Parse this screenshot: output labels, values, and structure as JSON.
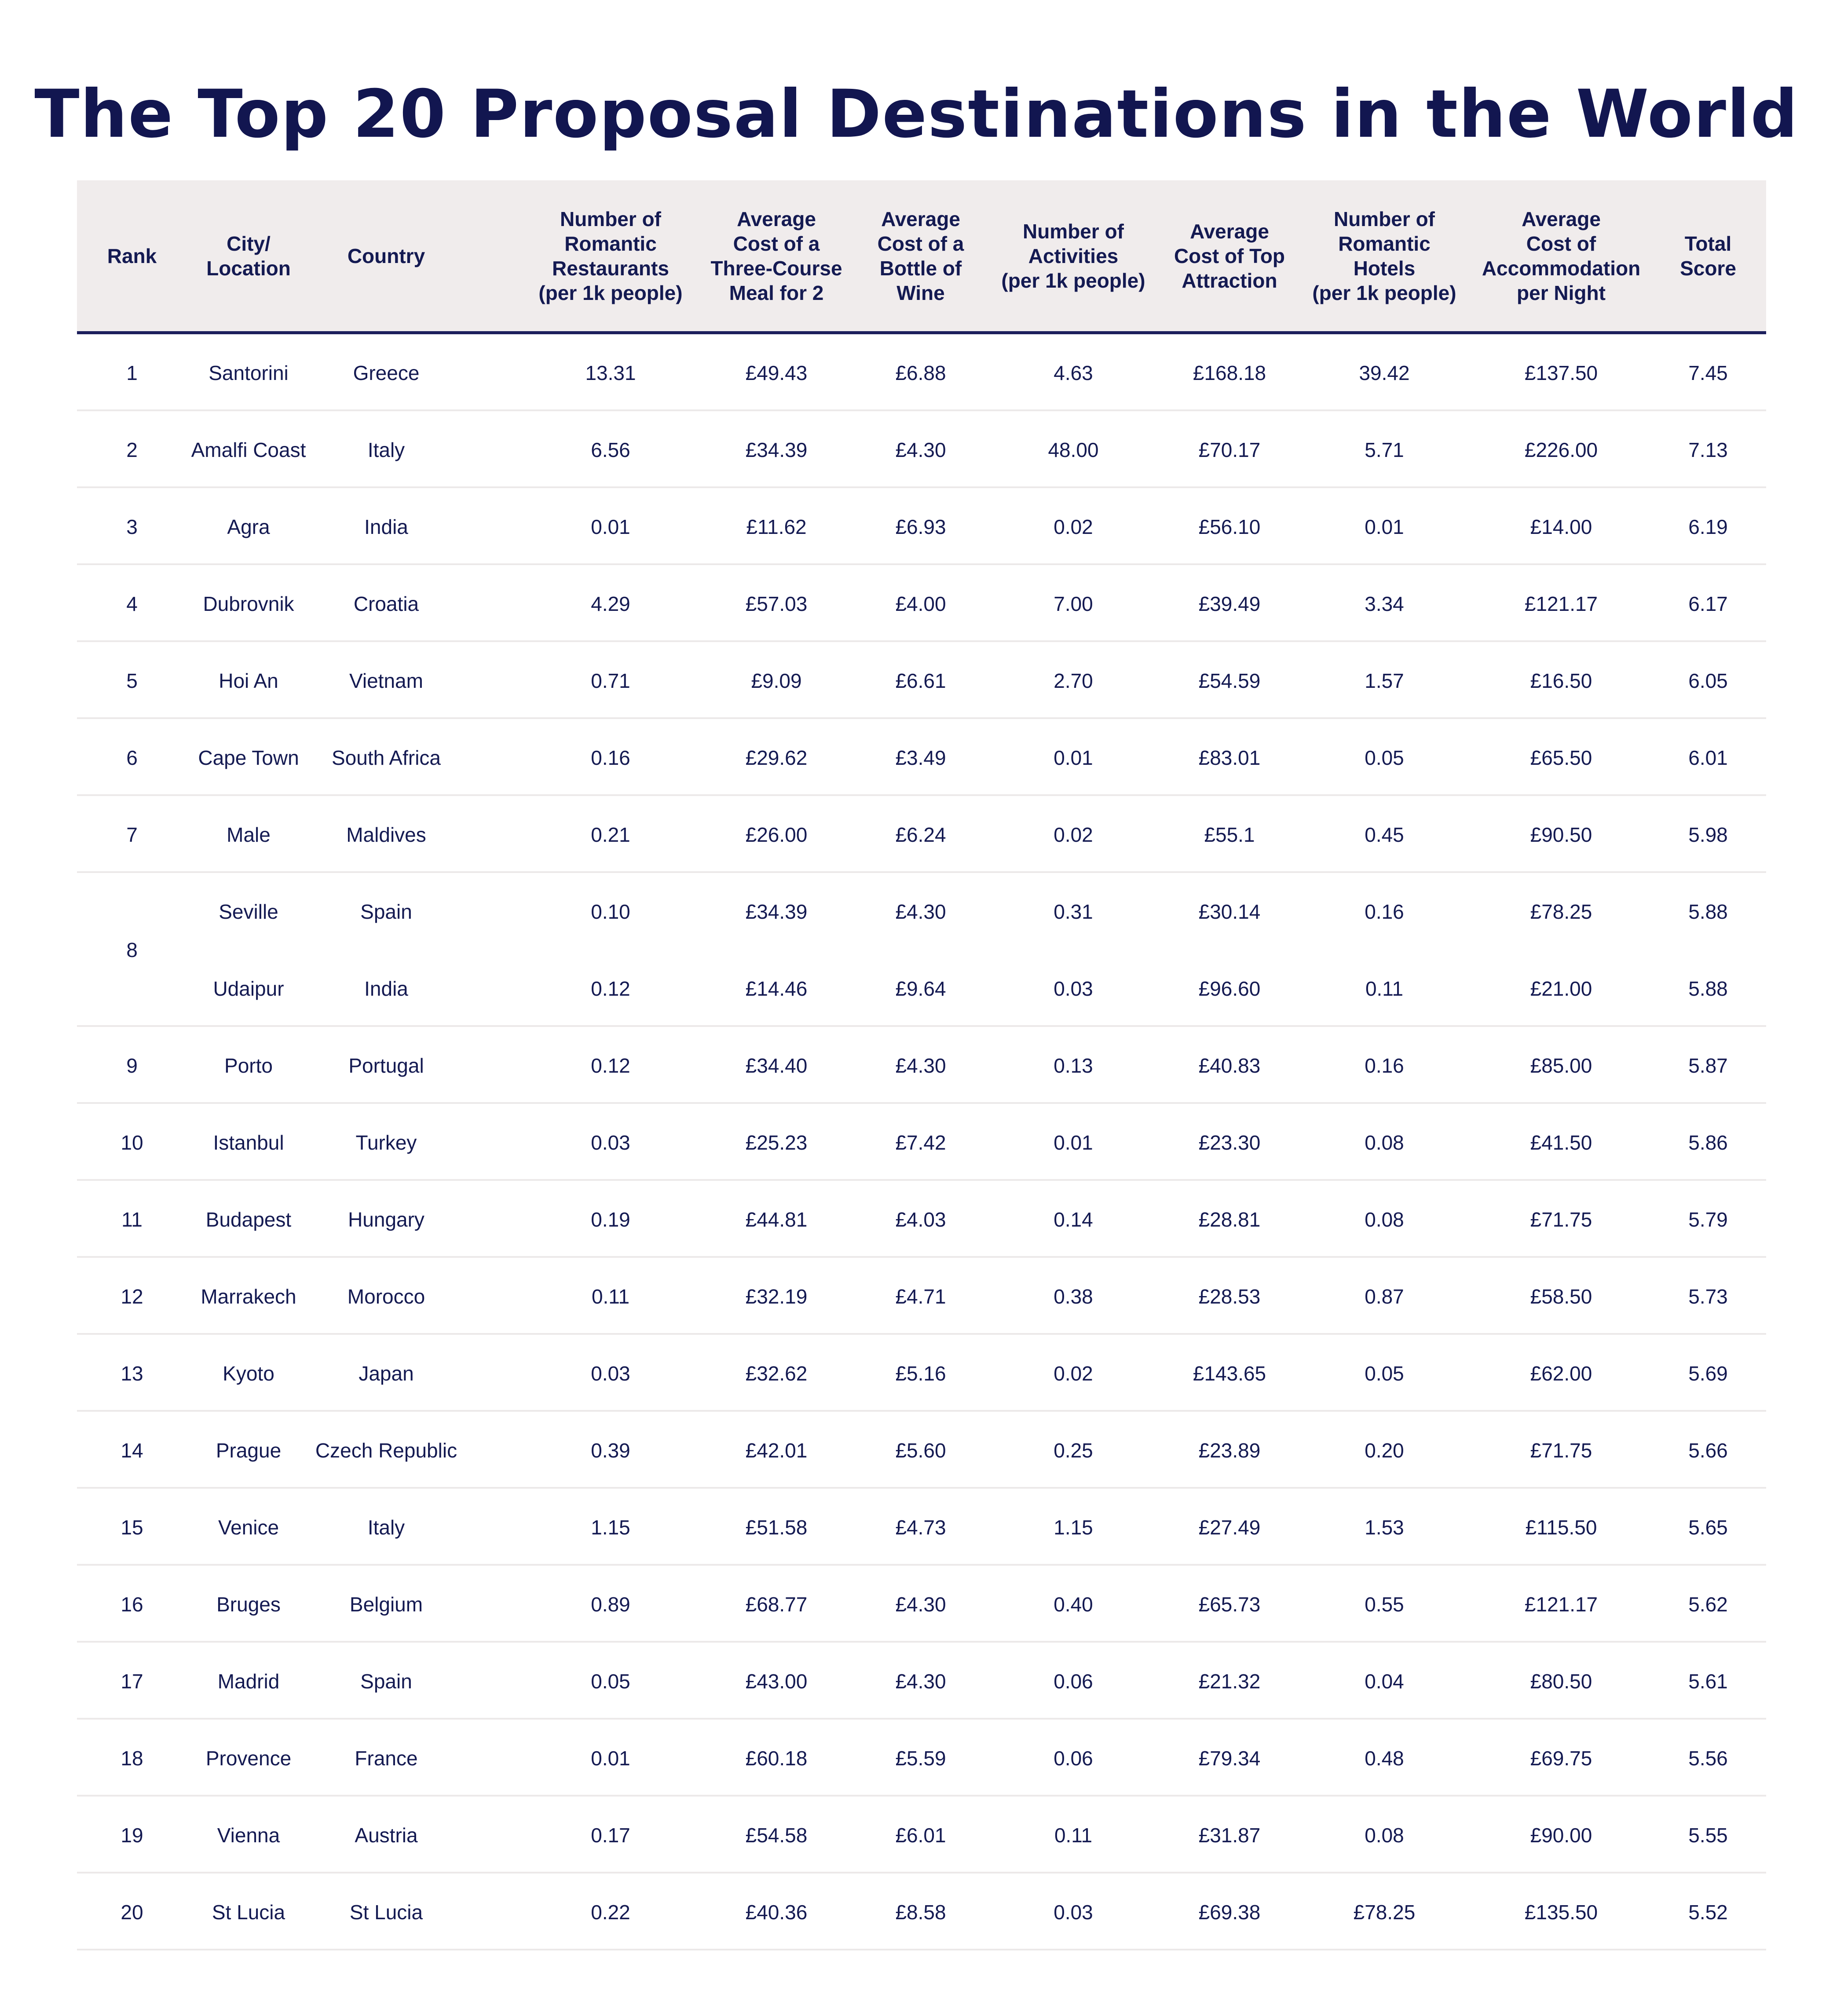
{
  "chart_data": {
    "type": "table",
    "title": "The Top 20 Proposal Destinations in the World",
    "columns": [
      "Rank",
      "City/\nLocation",
      "Country",
      "Number of\nRomantic\nRestaurants\n(per 1k people)",
      "Average\nCost of a\nThree-Course\nMeal for 2",
      "Average\nCost of a\nBottle of\nWine",
      "Number of\nActivities\n(per 1k people)",
      "Average\nCost of Top\nAttraction",
      "Number of\nRomantic\nHotels\n(per 1k people)",
      "Average\nCost of\nAccommodation\nper Night",
      "Total\nScore"
    ],
    "groups": [
      {
        "rank": "1",
        "rows": [
          [
            "Santorini",
            "Greece",
            "13.31",
            "£49.43",
            "£6.88",
            "4.63",
            "£168.18",
            "39.42",
            "£137.50",
            "7.45"
          ]
        ]
      },
      {
        "rank": "2",
        "rows": [
          [
            "Amalfi Coast",
            "Italy",
            "6.56",
            "£34.39",
            "£4.30",
            "48.00",
            "£70.17",
            "5.71",
            "£226.00",
            "7.13"
          ]
        ]
      },
      {
        "rank": "3",
        "rows": [
          [
            "Agra",
            "India",
            "0.01",
            "£11.62",
            "£6.93",
            "0.02",
            "£56.10",
            "0.01",
            "£14.00",
            "6.19"
          ]
        ]
      },
      {
        "rank": "4",
        "rows": [
          [
            "Dubrovnik",
            "Croatia",
            "4.29",
            "£57.03",
            "£4.00",
            "7.00",
            "£39.49",
            "3.34",
            "£121.17",
            "6.17"
          ]
        ]
      },
      {
        "rank": "5",
        "rows": [
          [
            "Hoi An",
            "Vietnam",
            "0.71",
            "£9.09",
            "£6.61",
            "2.70",
            "£54.59",
            "1.57",
            "£16.50",
            "6.05"
          ]
        ]
      },
      {
        "rank": "6",
        "rows": [
          [
            "Cape Town",
            "South Africa",
            "0.16",
            "£29.62",
            "£3.49",
            "0.01",
            "£83.01",
            "0.05",
            "£65.50",
            "6.01"
          ]
        ]
      },
      {
        "rank": "7",
        "rows": [
          [
            "Male",
            "Maldives",
            "0.21",
            "£26.00",
            "£6.24",
            "0.02",
            "£55.1",
            "0.45",
            "£90.50",
            "5.98"
          ]
        ]
      },
      {
        "rank": "8",
        "rows": [
          [
            "Seville",
            "Spain",
            "0.10",
            "£34.39",
            "£4.30",
            "0.31",
            "£30.14",
            "0.16",
            "£78.25",
            "5.88"
          ],
          [
            "Udaipur",
            "India",
            "0.12",
            "£14.46",
            "£9.64",
            "0.03",
            "£96.60",
            "0.11",
            "£21.00",
            "5.88"
          ]
        ]
      },
      {
        "rank": "9",
        "rows": [
          [
            "Porto",
            "Portugal",
            "0.12",
            "£34.40",
            "£4.30",
            "0.13",
            "£40.83",
            "0.16",
            "£85.00",
            "5.87"
          ]
        ]
      },
      {
        "rank": "10",
        "rows": [
          [
            "Istanbul",
            "Turkey",
            "0.03",
            "£25.23",
            "£7.42",
            "0.01",
            "£23.30",
            "0.08",
            "£41.50",
            "5.86"
          ]
        ]
      },
      {
        "rank": "11",
        "rows": [
          [
            "Budapest",
            "Hungary",
            "0.19",
            "£44.81",
            "£4.03",
            "0.14",
            "£28.81",
            "0.08",
            "£71.75",
            "5.79"
          ]
        ]
      },
      {
        "rank": "12",
        "rows": [
          [
            "Marrakech",
            "Morocco",
            "0.11",
            "£32.19",
            "£4.71",
            "0.38",
            "£28.53",
            "0.87",
            "£58.50",
            "5.73"
          ]
        ]
      },
      {
        "rank": "13",
        "rows": [
          [
            "Kyoto",
            "Japan",
            "0.03",
            "£32.62",
            "£5.16",
            "0.02",
            "£143.65",
            "0.05",
            "£62.00",
            "5.69"
          ]
        ]
      },
      {
        "rank": "14",
        "rows": [
          [
            "Prague",
            "Czech Republic",
            "0.39",
            "£42.01",
            "£5.60",
            "0.25",
            "£23.89",
            "0.20",
            "£71.75",
            "5.66"
          ]
        ]
      },
      {
        "rank": "15",
        "rows": [
          [
            "Venice",
            "Italy",
            "1.15",
            "£51.58",
            "£4.73",
            "1.15",
            "£27.49",
            "1.53",
            "£115.50",
            "5.65"
          ]
        ]
      },
      {
        "rank": "16",
        "rows": [
          [
            "Bruges",
            "Belgium",
            "0.89",
            "£68.77",
            "£4.30",
            "0.40",
            "£65.73",
            "0.55",
            "£121.17",
            "5.62"
          ]
        ]
      },
      {
        "rank": "17",
        "rows": [
          [
            "Madrid",
            "Spain",
            "0.05",
            "£43.00",
            "£4.30",
            "0.06",
            "£21.32",
            "0.04",
            "£80.50",
            "5.61"
          ]
        ]
      },
      {
        "rank": "18",
        "rows": [
          [
            "Provence",
            "France",
            "0.01",
            "£60.18",
            "£5.59",
            "0.06",
            "£79.34",
            "0.48",
            "£69.75",
            "5.56"
          ]
        ]
      },
      {
        "rank": "19",
        "rows": [
          [
            "Vienna",
            "Austria",
            "0.17",
            "£54.58",
            "£6.01",
            "0.11",
            "£31.87",
            "0.08",
            "£90.00",
            "5.55"
          ]
        ]
      },
      {
        "rank": "20",
        "rows": [
          [
            "St Lucia",
            "St Lucia",
            "0.22",
            "£40.36",
            "£8.58",
            "0.03",
            "£69.38",
            "£78.25",
            "£135.50",
            "5.52"
          ]
        ]
      }
    ]
  },
  "colors": {
    "text": "#141a52",
    "header_bg": "#f0ecec",
    "header_rule": "#1c1f5c",
    "row_rule": "#ece9e9"
  }
}
